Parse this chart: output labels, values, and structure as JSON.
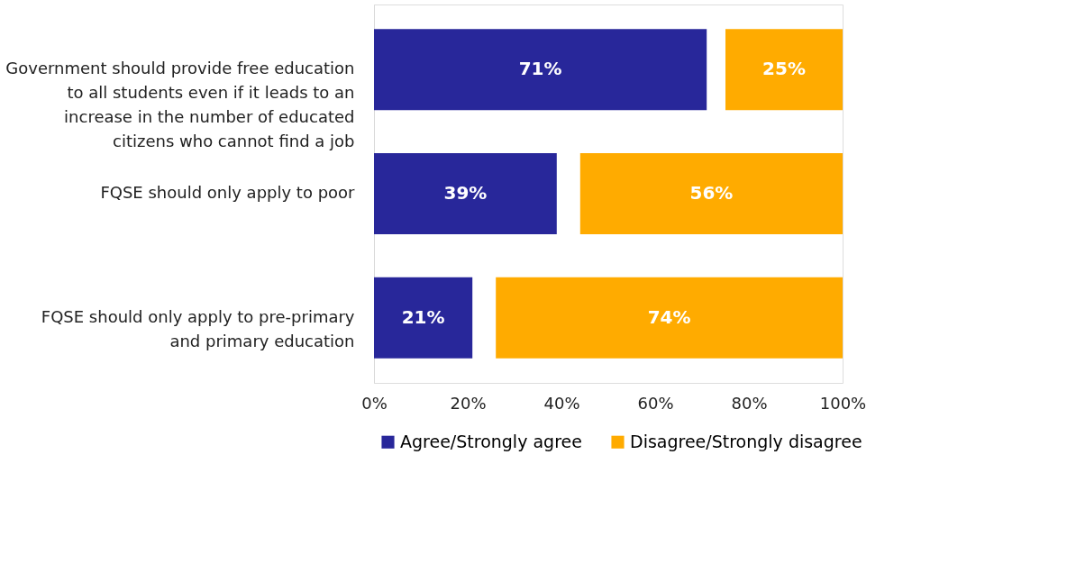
{
  "chart_data": {
    "type": "bar",
    "orientation": "horizontal",
    "categories": [
      "Government should provide free education to all students even if it leads to an increase in the number of educated citizens who cannot find a job",
      "FQSE should only apply to poor",
      "FQSE should only apply to pre-primary and primary education"
    ],
    "series": [
      {
        "name": "Agree/Strongly agree",
        "color": "#28279a",
        "values": [
          71,
          39,
          21
        ],
        "base": [
          0,
          0,
          0
        ],
        "value_labels": [
          "71%",
          "39%",
          "21%"
        ]
      },
      {
        "name": "Disagree/Strongly disagree",
        "color": "#ffab00",
        "values": [
          25,
          56,
          74
        ],
        "base": [
          75,
          44,
          26
        ],
        "value_labels": [
          "25%",
          "56%",
          "74%"
        ]
      }
    ],
    "xlim": [
      0,
      100
    ],
    "xticks": [
      {
        "value": 0,
        "label": "0%"
      },
      {
        "value": 20,
        "label": "20%"
      },
      {
        "value": 40,
        "label": "40%"
      },
      {
        "value": 60,
        "label": "60%"
      },
      {
        "value": 80,
        "label": "80%"
      },
      {
        "value": 100,
        "label": "100%"
      }
    ],
    "grid": false,
    "legend": "bottom"
  }
}
